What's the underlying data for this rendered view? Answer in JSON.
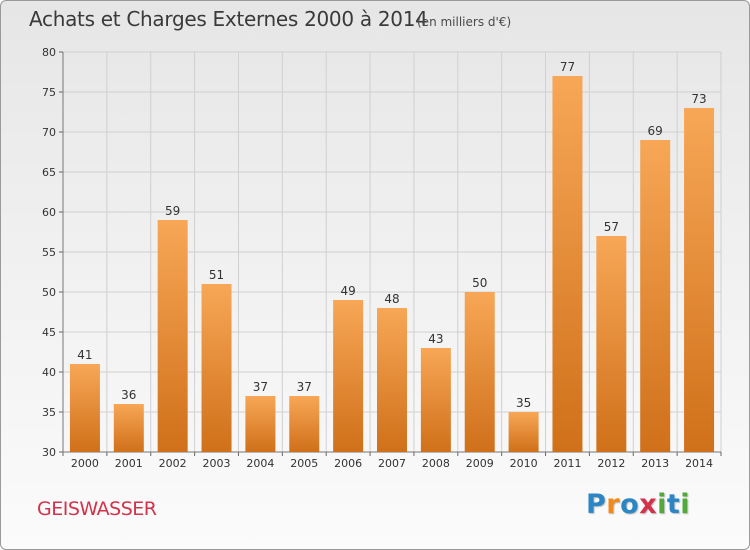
{
  "title": "Achats et Charges Externes 2000 à 2014",
  "subtitle": "(en milliers d'€)",
  "commune": "GEISWASSER",
  "logo": {
    "letters": [
      "P",
      "r",
      "o",
      "x",
      "i",
      "t",
      "i"
    ],
    "colors": [
      "#2b86c5",
      "#f08a1c",
      "#2b86c5",
      "#d2324a",
      "#52a83a",
      "#2b86c5",
      "#52a83a"
    ]
  },
  "colors": {
    "bar_light": "#f7a756",
    "bar_dark": "#d0701a",
    "grid": "#d0d0d0"
  },
  "chart_data": {
    "type": "bar",
    "categories": [
      "2000",
      "2001",
      "2002",
      "2003",
      "2004",
      "2005",
      "2006",
      "2007",
      "2008",
      "2009",
      "2010",
      "2011",
      "2012",
      "2013",
      "2014"
    ],
    "values": [
      41,
      36,
      59,
      51,
      37,
      37,
      49,
      48,
      43,
      50,
      35,
      77,
      57,
      69,
      73
    ],
    "ylim": [
      30,
      80
    ],
    "yticks": [
      30,
      35,
      40,
      45,
      50,
      55,
      60,
      65,
      70,
      75,
      80
    ],
    "grid": true,
    "legend": "none"
  }
}
